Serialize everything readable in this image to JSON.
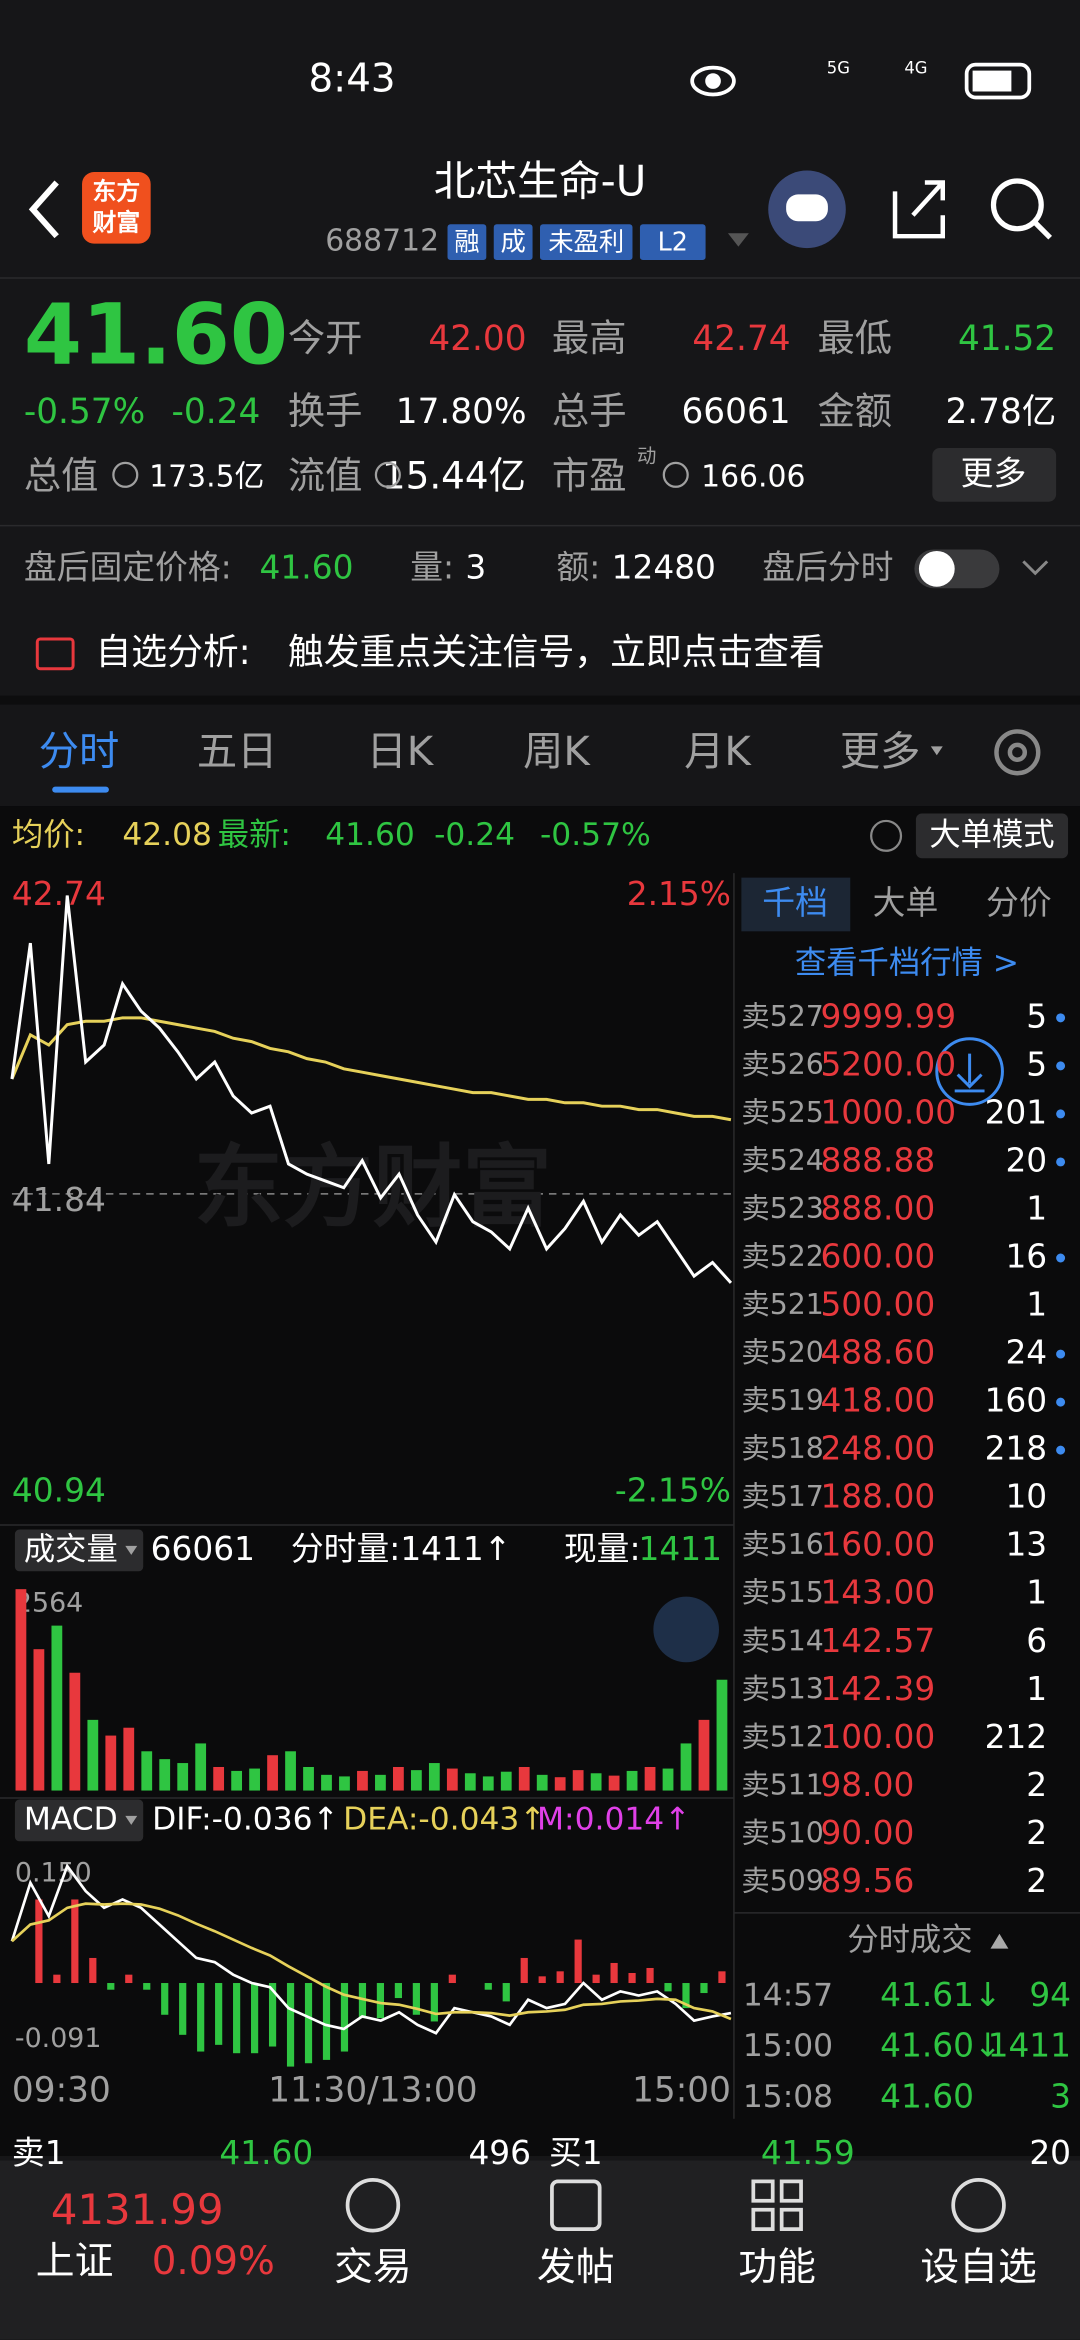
{
  "status": {
    "time": "8:43",
    "net": [
      "5G",
      "4G"
    ]
  },
  "header": {
    "logo": [
      "东方",
      "财富"
    ],
    "title": "北芯生命-U",
    "code": "688712",
    "tags": [
      "融",
      "成",
      "未盈利",
      "L2"
    ]
  },
  "quote": {
    "price": "41.60",
    "change_pct": "-0.57%",
    "change": "-0.24",
    "fields": [
      {
        "label": "今开",
        "value": "42.00"
      },
      {
        "label": "最高",
        "value": "42.74"
      },
      {
        "label": "最低",
        "value": "41.52"
      },
      {
        "label": "换手",
        "value": "17.80%"
      },
      {
        "label": "总手",
        "value": "66061"
      },
      {
        "label": "金额",
        "value": "2.78亿"
      },
      {
        "label": "总值",
        "value": "173.5亿"
      },
      {
        "label": "流值",
        "value": "15.44亿"
      },
      {
        "label": "市盈",
        "sup": "动",
        "value": "166.06"
      }
    ],
    "more": "更多"
  },
  "after_hours": {
    "label": "盘后固定价格:",
    "price": "41.60",
    "vol_label": "量:",
    "vol": "3",
    "amt_label": "额:",
    "amt": "12480",
    "switch": "盘后分时"
  },
  "alert": {
    "label": "自选分析:",
    "text": "触发重点关注信号，立即点击查看"
  },
  "tabs": [
    "分时",
    "五日",
    "日K",
    "周K",
    "月K",
    "更多"
  ],
  "info": {
    "avg_label": "均价:",
    "avg": "42.08",
    "last_label": "最新:",
    "last": "41.60",
    "change": "-0.24",
    "change_pct": "-0.57%",
    "mode": "大单模式"
  },
  "chart_data": [
    {
      "type": "line",
      "ylim": [
        40.94,
        42.74
      ],
      "yticks": [
        40.94,
        41.84,
        42.74
      ],
      "pct_labels": [
        "2.15%",
        "-2.15%"
      ],
      "watermark": "东方财富",
      "series": [
        {
          "color": "#ffffff",
          "values": [
            42.2,
            42.6,
            41.95,
            42.74,
            42.25,
            42.3,
            42.48,
            42.4,
            42.35,
            42.28,
            42.2,
            42.25,
            42.15,
            42.1,
            42.12,
            41.95,
            41.92,
            41.9,
            41.88,
            41.96,
            41.85,
            41.92,
            41.8,
            41.72,
            41.86,
            41.78,
            41.75,
            41.7,
            41.82,
            41.7,
            41.76,
            41.84,
            41.72,
            41.8,
            41.74,
            41.78,
            41.7,
            41.62,
            41.66,
            41.6
          ]
        },
        {
          "color": "#e6d15a",
          "values": [
            42.2,
            42.33,
            42.3,
            42.36,
            42.37,
            42.37,
            42.38,
            42.38,
            42.37,
            42.36,
            42.35,
            42.34,
            42.32,
            42.31,
            42.29,
            42.28,
            42.26,
            42.25,
            42.23,
            42.22,
            42.21,
            42.2,
            42.19,
            42.18,
            42.17,
            42.16,
            42.16,
            42.15,
            42.14,
            42.14,
            42.13,
            42.13,
            42.12,
            42.12,
            42.11,
            42.11,
            42.1,
            42.09,
            42.09,
            42.08
          ]
        }
      ]
    },
    {
      "type": "bar",
      "title": "成交量",
      "total": "66061",
      "tick_label": "分时量:1411↑",
      "current_label": "现量:",
      "current": "1411",
      "ylim": [
        0,
        2564
      ],
      "yticks": [
        2564
      ],
      "values": [
        2564,
        1800,
        2100,
        1500,
        900,
        700,
        800,
        500,
        400,
        350,
        600,
        300,
        250,
        280,
        450,
        500,
        300,
        200,
        180,
        250,
        200,
        300,
        260,
        350,
        280,
        220,
        180,
        240,
        300,
        200,
        170,
        260,
        220,
        190,
        250,
        300,
        280,
        600,
        900,
        1411
      ]
    },
    {
      "type": "line",
      "title": "MACD",
      "indicators": [
        "DIF:-0.036↑",
        "DEA:-0.043↑",
        "M:0.014↑"
      ],
      "ylim": [
        -0.091,
        0.15
      ],
      "yticks": [
        {
          "value": 0.15,
          "label": "0.150"
        },
        -0.091
      ],
      "x_labels": [
        "09:30",
        "11:30/13:00",
        "15:00"
      ],
      "series": [
        {
          "color": "#ffffff",
          "values": [
            0.05,
            0.12,
            0.08,
            0.14,
            0.11,
            0.09,
            0.1,
            0.09,
            0.07,
            0.05,
            0.03,
            0.025,
            0.01,
            0.0,
            -0.005,
            -0.03,
            -0.04,
            -0.05,
            -0.055,
            -0.04,
            -0.045,
            -0.035,
            -0.05,
            -0.06,
            -0.03,
            -0.035,
            -0.04,
            -0.05,
            -0.02,
            -0.03,
            -0.025,
            0.0,
            -0.02,
            -0.01,
            -0.015,
            -0.01,
            -0.025,
            -0.045,
            -0.04,
            -0.036
          ]
        },
        {
          "color": "#e6d15a",
          "values": [
            0.05,
            0.07,
            0.075,
            0.09,
            0.095,
            0.094,
            0.095,
            0.094,
            0.089,
            0.081,
            0.071,
            0.062,
            0.052,
            0.042,
            0.033,
            0.02,
            0.008,
            -0.004,
            -0.014,
            -0.019,
            -0.024,
            -0.026,
            -0.031,
            -0.037,
            -0.035,
            -0.035,
            -0.036,
            -0.039,
            -0.035,
            -0.034,
            -0.032,
            -0.026,
            -0.025,
            -0.022,
            -0.021,
            -0.019,
            -0.02,
            -0.03,
            -0.034,
            -0.043
          ]
        }
      ],
      "bars": [
        0.0,
        0.1,
        0.01,
        0.1,
        0.03,
        -0.008,
        0.01,
        -0.008,
        -0.038,
        -0.062,
        -0.082,
        -0.074,
        -0.084,
        -0.084,
        -0.076,
        -0.1,
        -0.096,
        -0.092,
        -0.082,
        -0.042,
        -0.042,
        -0.018,
        -0.038,
        -0.046,
        0.01,
        0.0,
        -0.008,
        -0.022,
        0.03,
        0.008,
        0.014,
        0.052,
        0.01,
        0.024,
        0.012,
        0.018,
        -0.01,
        -0.03,
        -0.012,
        0.014
      ]
    }
  ],
  "order_book": {
    "tabs": [
      "千档",
      "大单",
      "分价"
    ],
    "link": "查看千档行情 >",
    "rows": [
      {
        "label": "卖527",
        "price": "9999.99",
        "volume": "5"
      },
      {
        "label": "卖526",
        "price": "5200.00",
        "volume": "5"
      },
      {
        "label": "卖525",
        "price": "1000.00",
        "volume": "201"
      },
      {
        "label": "卖524",
        "price": "888.88",
        "volume": "20"
      },
      {
        "label": "卖523",
        "price": "888.00",
        "volume": "1"
      },
      {
        "label": "卖522",
        "price": "600.00",
        "volume": "16"
      },
      {
        "label": "卖521",
        "price": "500.00",
        "volume": "1"
      },
      {
        "label": "卖520",
        "price": "488.60",
        "volume": "24"
      },
      {
        "label": "卖519",
        "price": "418.00",
        "volume": "160"
      },
      {
        "label": "卖518",
        "price": "248.00",
        "volume": "218"
      },
      {
        "label": "卖517",
        "price": "188.00",
        "volume": "10"
      },
      {
        "label": "卖516",
        "price": "160.00",
        "volume": "13"
      },
      {
        "label": "卖515",
        "price": "143.00",
        "volume": "1"
      },
      {
        "label": "卖514",
        "price": "142.57",
        "volume": "6"
      },
      {
        "label": "卖513",
        "price": "142.39",
        "volume": "1"
      },
      {
        "label": "卖512",
        "price": "100.00",
        "volume": "212"
      },
      {
        "label": "卖511",
        "price": "98.00",
        "volume": "2"
      },
      {
        "label": "卖510",
        "price": "90.00",
        "volume": "2"
      },
      {
        "label": "卖509",
        "price": "89.56",
        "volume": "2"
      }
    ]
  },
  "trades": {
    "title": "分时成交",
    "rows": [
      {
        "time": "14:57",
        "price": "41.61↓",
        "volume": "94"
      },
      {
        "time": "15:00",
        "price": "41.60↓",
        "volume": "1411"
      },
      {
        "time": "15:08",
        "price": "41.60",
        "volume": "3"
      }
    ]
  },
  "level1": [
    "卖1",
    "41.60",
    "496",
    "买1",
    "41.59",
    "20"
  ],
  "nav": {
    "index": "4131.99",
    "index_name": "上证",
    "index_change": "0.09%",
    "items": [
      "交易",
      "发帖",
      "功能",
      "设自选"
    ]
  }
}
